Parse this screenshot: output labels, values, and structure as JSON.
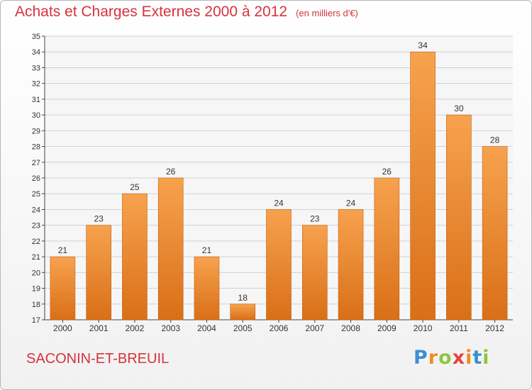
{
  "header": {
    "title": "Achats et Charges Externes 2000 à 2012",
    "unit": "(en milliers d'€)"
  },
  "footer": {
    "commune": "SACONIN-ET-BREUIL",
    "logo_letters": [
      {
        "ch": "P",
        "color": "#3a8fd6"
      },
      {
        "ch": "r",
        "color": "#f08a24"
      },
      {
        "ch": "o",
        "color": "#8cc63f"
      },
      {
        "ch": "x",
        "color": "#e8413c"
      },
      {
        "ch": "i",
        "color": "#f08a24"
      },
      {
        "ch": "t",
        "color": "#3a8fd6"
      },
      {
        "ch": "i",
        "color": "#8cc63f"
      }
    ]
  },
  "colors": {
    "bar_top": "#f7a24e",
    "bar_bottom": "#d96f17",
    "bar_edge": "#c55f10",
    "title": "#d7323c",
    "grid": "#d2d2d2",
    "axis": "#444444"
  },
  "chart_data": {
    "type": "bar",
    "categories": [
      "2000",
      "2001",
      "2002",
      "2003",
      "2004",
      "2005",
      "2006",
      "2007",
      "2008",
      "2009",
      "2010",
      "2011",
      "2012"
    ],
    "values": [
      21,
      23,
      25,
      26,
      21,
      18,
      24,
      23,
      24,
      26,
      34,
      30,
      28
    ],
    "data_labels": [
      "21",
      "23",
      "25",
      "26",
      "21",
      "18",
      "24",
      "23",
      "24",
      "26",
      "34",
      "30",
      "28"
    ],
    "title": "Achats et Charges Externes 2000 à 2012",
    "ylim": [
      17,
      35
    ],
    "yticks": [
      17,
      18,
      19,
      20,
      21,
      22,
      23,
      24,
      25,
      26,
      27,
      28,
      29,
      30,
      31,
      32,
      33,
      34,
      35
    ],
    "grid": true
  }
}
